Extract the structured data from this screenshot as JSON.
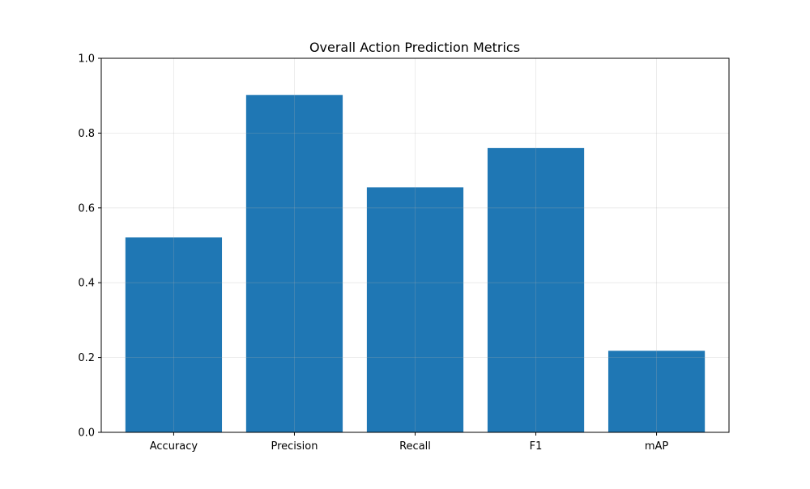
{
  "chart_data": {
    "type": "bar",
    "title": "Overall Action Prediction Metrics",
    "xlabel": "",
    "ylabel": "",
    "categories": [
      "Accuracy",
      "Precision",
      "Recall",
      "F1",
      "mAP"
    ],
    "values": [
      0.521,
      0.902,
      0.655,
      0.76,
      0.218
    ],
    "ylim": [
      0,
      1.0
    ],
    "yticks": [
      "0.0",
      "0.2",
      "0.4",
      "0.6",
      "0.8",
      "1.0"
    ],
    "grid": true,
    "legend": "none",
    "colors": {
      "bar": "#1f77b4",
      "grid": "#e6e6e6",
      "axis": "#000000"
    }
  }
}
